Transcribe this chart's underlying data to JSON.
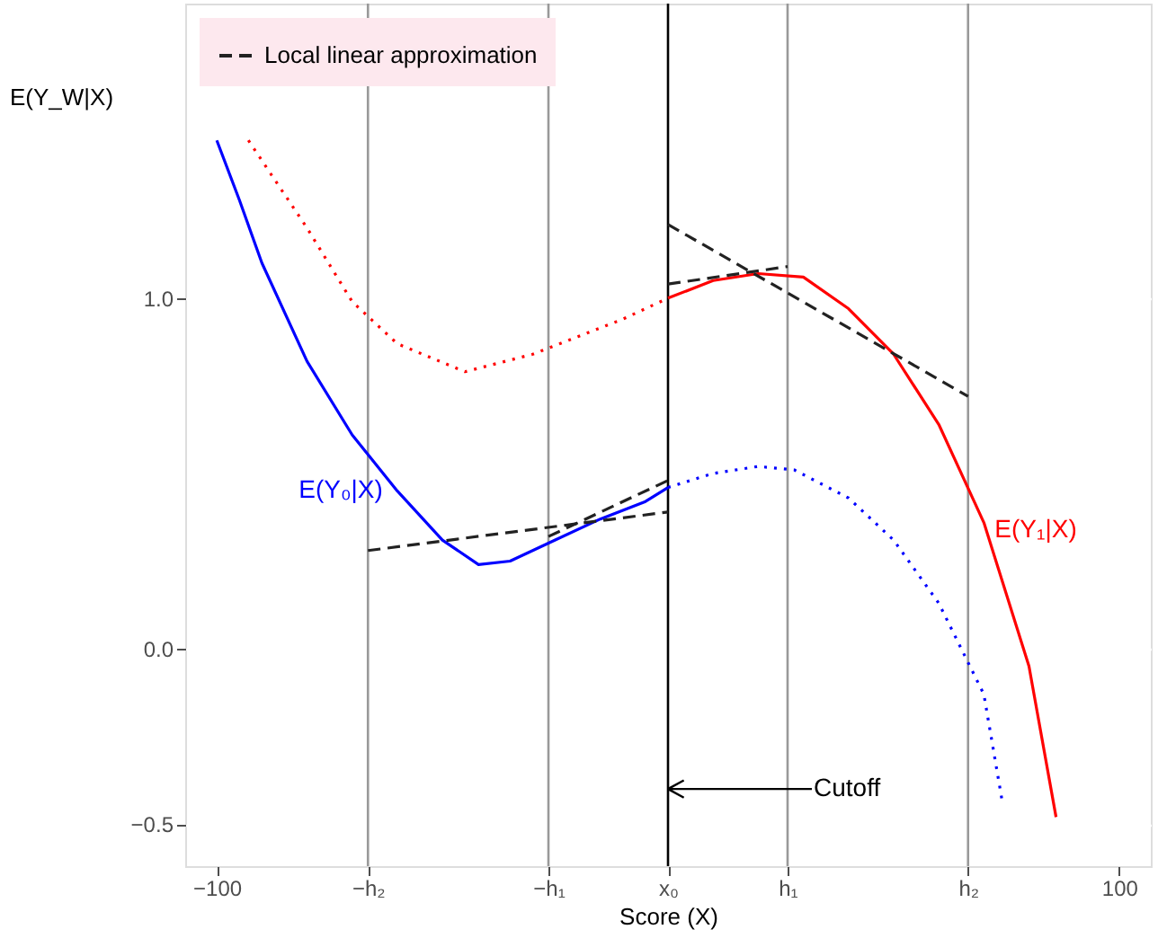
{
  "chart_data": {
    "type": "line",
    "xlabel": "Score (X)",
    "ylabel": "E(Y_W|X)",
    "xlim": [
      -107,
      107
    ],
    "ylim": [
      -0.62,
      1.84
    ],
    "xticks": [
      {
        "value": -100,
        "label": "−100"
      },
      {
        "value": -66.5,
        "label": "−h₂"
      },
      {
        "value": -26.5,
        "label": "−h₁"
      },
      {
        "value": 0,
        "label": "x₀"
      },
      {
        "value": 26.5,
        "label": "h₁"
      },
      {
        "value": 66.5,
        "label": "h₂"
      },
      {
        "value": 100,
        "label": "100"
      }
    ],
    "yticks": [
      {
        "value": -0.5,
        "label": "−0.5"
      },
      {
        "value": 0,
        "label": "0.0"
      },
      {
        "value": 1,
        "label": "1.0"
      }
    ],
    "grid": "y",
    "legend": "top left",
    "marker": "none",
    "ref_lines": [
      {
        "axis": "x",
        "value": 0,
        "color": "#000000"
      },
      {
        "axis": "x",
        "value": -66.5,
        "color": "#999999"
      },
      {
        "axis": "x",
        "value": -26.5,
        "color": "#999999"
      },
      {
        "axis": "x",
        "value": 26.5,
        "color": "#999999"
      },
      {
        "axis": "x",
        "value": 66.5,
        "color": "#999999"
      }
    ],
    "series": [
      {
        "name": "E(Y₀|X)",
        "color": "#0000ff",
        "line_style": "solid",
        "x": [
          -100,
          -95,
          -90,
          -80,
          -70,
          -60,
          -50,
          -42,
          -35,
          -25,
          -15,
          -5,
          0
        ],
        "values": [
          1.45,
          1.28,
          1.1,
          0.82,
          0.61,
          0.45,
          0.31,
          0.24,
          0.25,
          0.31,
          0.37,
          0.42,
          0.46
        ]
      },
      {
        "color": "#0000ff",
        "line_style": "dotted",
        "x": [
          0,
          10,
          20,
          28,
          40,
          50,
          60,
          70,
          74
        ],
        "values": [
          0.46,
          0.5,
          0.52,
          0.51,
          0.43,
          0.31,
          0.13,
          -0.13,
          -0.43
        ]
      },
      {
        "color": "#ff0000",
        "line_style": "dotted",
        "x": [
          -93,
          -80,
          -70,
          -60,
          -45,
          -30,
          -20,
          -10,
          0
        ],
        "values": [
          1.45,
          1.2,
          0.99,
          0.87,
          0.79,
          0.84,
          0.89,
          0.94,
          1.0
        ]
      },
      {
        "name": "E(Y₁|X)",
        "color": "#ff0000",
        "line_style": "solid",
        "x": [
          0,
          10,
          20,
          30,
          40,
          50,
          60,
          70,
          80,
          86
        ],
        "values": [
          1.0,
          1.05,
          1.07,
          1.06,
          0.97,
          0.84,
          0.64,
          0.36,
          -0.05,
          -0.48
        ]
      },
      {
        "name": "Local linear approximation",
        "color": "#222222",
        "line_style": "dashed",
        "x": [
          -66.5,
          0
        ],
        "values": [
          0.28,
          0.39
        ]
      },
      {
        "color": "#222222",
        "line_style": "dashed",
        "x": [
          -26.5,
          0
        ],
        "values": [
          0.32,
          0.48
        ]
      },
      {
        "color": "#222222",
        "line_style": "dashed",
        "x": [
          0,
          66.5
        ],
        "values": [
          1.21,
          0.72
        ]
      },
      {
        "color": "#222222",
        "line_style": "dashed",
        "x": [
          0,
          26.5
        ],
        "values": [
          1.04,
          1.09
        ]
      }
    ],
    "annotations": [
      {
        "text": "Cutoff",
        "x": 0,
        "y": -0.4
      }
    ]
  }
}
